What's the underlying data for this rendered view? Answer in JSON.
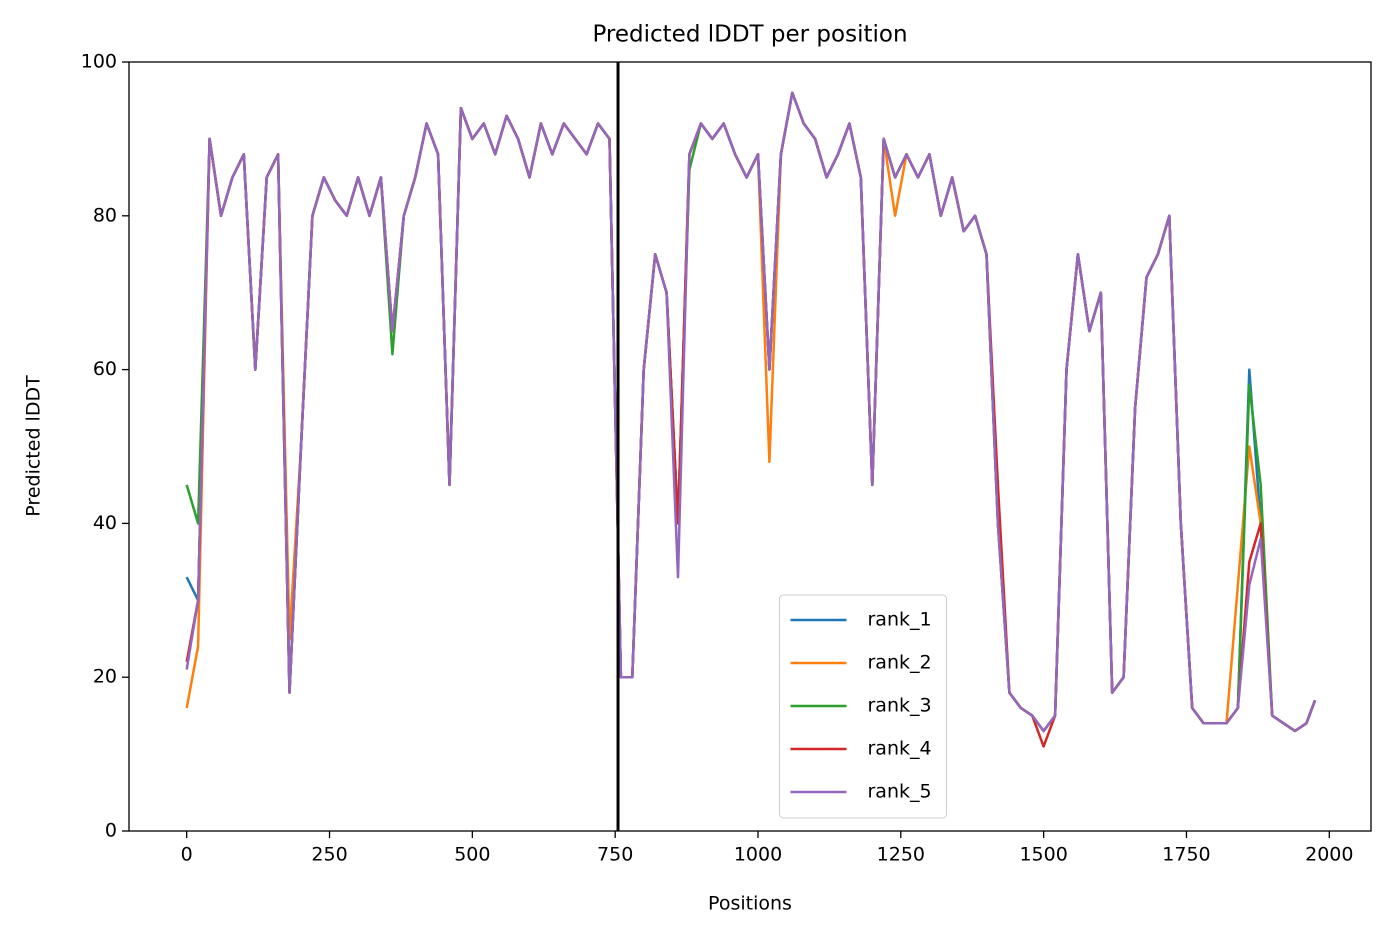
{
  "chart_data": {
    "type": "line",
    "title": "Predicted lDDT per position",
    "xlabel": "Positions",
    "ylabel": "Predicted lDDT",
    "x": [
      0,
      20,
      40,
      60,
      80,
      100,
      120,
      140,
      160,
      180,
      200,
      220,
      240,
      260,
      280,
      300,
      320,
      340,
      360,
      380,
      400,
      420,
      440,
      460,
      480,
      500,
      520,
      540,
      560,
      580,
      600,
      620,
      640,
      660,
      680,
      700,
      720,
      740,
      760,
      780,
      800,
      820,
      840,
      860,
      880,
      900,
      920,
      940,
      960,
      980,
      1000,
      1020,
      1040,
      1060,
      1080,
      1100,
      1120,
      1140,
      1160,
      1180,
      1200,
      1220,
      1240,
      1260,
      1280,
      1300,
      1320,
      1340,
      1360,
      1380,
      1400,
      1420,
      1440,
      1460,
      1480,
      1500,
      1520,
      1540,
      1560,
      1580,
      1600,
      1620,
      1640,
      1660,
      1680,
      1700,
      1720,
      1740,
      1760,
      1780,
      1800,
      1820,
      1840,
      1860,
      1880,
      1900,
      1920,
      1940,
      1960,
      1975
    ],
    "series": [
      {
        "name": "rank_1",
        "color": "#1f77b4",
        "values": [
          33,
          30,
          90,
          80,
          85,
          88,
          60,
          85,
          88,
          18,
          50,
          80,
          85,
          82,
          80,
          85,
          80,
          85,
          65,
          80,
          85,
          92,
          88,
          45,
          94,
          90,
          92,
          88,
          93,
          90,
          85,
          92,
          88,
          92,
          90,
          88,
          92,
          90,
          20,
          20,
          60,
          75,
          70,
          40,
          88,
          92,
          90,
          92,
          88,
          85,
          88,
          60,
          88,
          96,
          92,
          90,
          85,
          88,
          92,
          85,
          45,
          90,
          85,
          88,
          85,
          88,
          80,
          85,
          78,
          80,
          75,
          40,
          18,
          16,
          15,
          13,
          15,
          60,
          75,
          65,
          70,
          18,
          20,
          55,
          72,
          75,
          80,
          40,
          16,
          14,
          14,
          14,
          16,
          60,
          40,
          15,
          14,
          13,
          14,
          17
        ]
      },
      {
        "name": "rank_2",
        "color": "#ff7f0e",
        "values": [
          16,
          24,
          90,
          80,
          85,
          88,
          60,
          85,
          88,
          25,
          50,
          80,
          85,
          82,
          80,
          85,
          80,
          85,
          65,
          80,
          85,
          92,
          88,
          45,
          94,
          90,
          92,
          88,
          93,
          90,
          85,
          92,
          88,
          92,
          90,
          88,
          92,
          90,
          20,
          20,
          60,
          75,
          70,
          40,
          88,
          92,
          90,
          92,
          88,
          85,
          88,
          48,
          88,
          96,
          92,
          90,
          85,
          88,
          92,
          85,
          45,
          90,
          80,
          88,
          85,
          88,
          80,
          85,
          78,
          80,
          75,
          40,
          18,
          16,
          15,
          13,
          15,
          60,
          75,
          65,
          70,
          18,
          20,
          55,
          72,
          75,
          80,
          40,
          16,
          14,
          14,
          14,
          32,
          50,
          40,
          15,
          14,
          13,
          14,
          17
        ]
      },
      {
        "name": "rank_3",
        "color": "#2ca02c",
        "values": [
          45,
          40,
          90,
          80,
          85,
          88,
          60,
          85,
          88,
          18,
          50,
          80,
          85,
          82,
          80,
          85,
          80,
          85,
          62,
          80,
          85,
          92,
          88,
          45,
          94,
          90,
          92,
          88,
          93,
          90,
          85,
          92,
          88,
          92,
          90,
          88,
          92,
          90,
          20,
          20,
          60,
          75,
          70,
          40,
          86,
          92,
          90,
          92,
          88,
          85,
          88,
          60,
          88,
          96,
          92,
          90,
          85,
          88,
          92,
          85,
          45,
          90,
          85,
          88,
          85,
          88,
          80,
          85,
          78,
          80,
          75,
          40,
          18,
          16,
          15,
          13,
          15,
          60,
          75,
          65,
          70,
          18,
          20,
          55,
          72,
          75,
          80,
          40,
          16,
          14,
          14,
          14,
          16,
          58,
          45,
          15,
          14,
          13,
          14,
          17
        ]
      },
      {
        "name": "rank_4",
        "color": "#d62728",
        "values": [
          22,
          30,
          90,
          80,
          85,
          88,
          60,
          85,
          88,
          18,
          50,
          80,
          85,
          82,
          80,
          85,
          80,
          85,
          65,
          80,
          85,
          92,
          88,
          45,
          94,
          90,
          92,
          88,
          93,
          90,
          85,
          92,
          88,
          92,
          90,
          88,
          92,
          90,
          20,
          20,
          60,
          75,
          70,
          40,
          88,
          92,
          90,
          92,
          88,
          85,
          88,
          60,
          88,
          96,
          92,
          90,
          85,
          88,
          92,
          85,
          45,
          90,
          85,
          88,
          85,
          88,
          80,
          85,
          78,
          80,
          75,
          45,
          18,
          16,
          15,
          11,
          15,
          60,
          75,
          65,
          70,
          18,
          20,
          55,
          72,
          75,
          80,
          40,
          16,
          14,
          14,
          14,
          16,
          35,
          40,
          15,
          14,
          13,
          14,
          17
        ]
      },
      {
        "name": "rank_5",
        "color": "#9467bd",
        "values": [
          21,
          30,
          90,
          80,
          85,
          88,
          60,
          85,
          88,
          18,
          50,
          80,
          85,
          82,
          80,
          85,
          80,
          85,
          65,
          80,
          85,
          92,
          88,
          45,
          94,
          90,
          92,
          88,
          93,
          90,
          85,
          92,
          88,
          92,
          90,
          88,
          92,
          90,
          20,
          20,
          60,
          75,
          70,
          33,
          88,
          92,
          90,
          92,
          88,
          85,
          88,
          60,
          88,
          96,
          92,
          90,
          85,
          88,
          92,
          85,
          45,
          90,
          85,
          88,
          85,
          88,
          80,
          85,
          78,
          80,
          75,
          40,
          18,
          16,
          15,
          13,
          15,
          60,
          75,
          65,
          70,
          18,
          20,
          55,
          72,
          75,
          80,
          40,
          16,
          14,
          14,
          14,
          16,
          32,
          38,
          15,
          14,
          13,
          14,
          17
        ]
      }
    ],
    "vline": 755,
    "vline_color": "#000000",
    "xlim": [
      -101,
      2073
    ],
    "ylim": [
      0,
      100
    ],
    "xticks": [
      0,
      250,
      500,
      750,
      1000,
      1250,
      1500,
      1750,
      2000
    ],
    "yticks": [
      0,
      20,
      40,
      60,
      80,
      100
    ],
    "grid": false,
    "legend": "lower center"
  }
}
